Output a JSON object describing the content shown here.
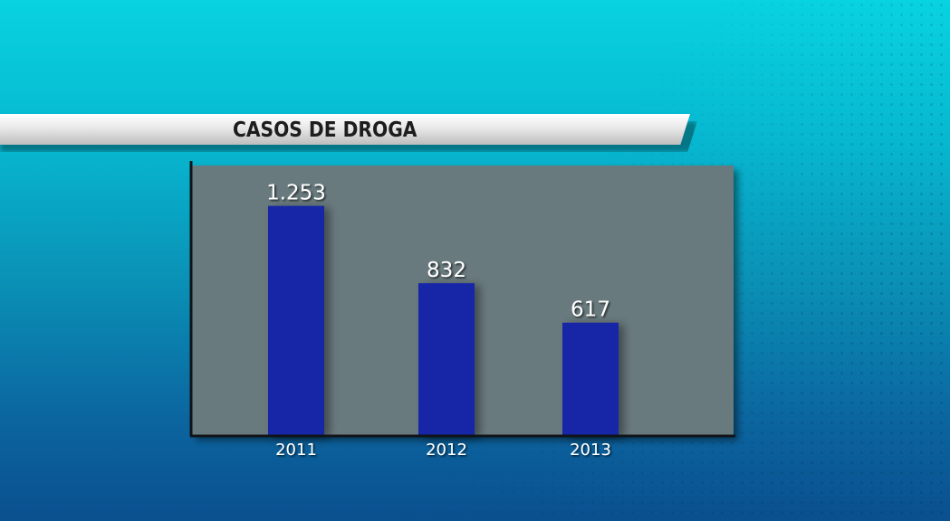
{
  "chart_data": {
    "type": "bar",
    "title": "CASOS DE DROGA",
    "categories": [
      "2011",
      "2012",
      "2013"
    ],
    "values": [
      1253,
      832,
      617
    ],
    "value_labels": [
      "1.253",
      "832",
      "617"
    ],
    "ylim": [
      0,
      1400
    ],
    "grid": false,
    "colors": {
      "bar": "#1627a6",
      "panel": "#697a7e",
      "axis": "#101418",
      "label": "#ffffff"
    }
  }
}
